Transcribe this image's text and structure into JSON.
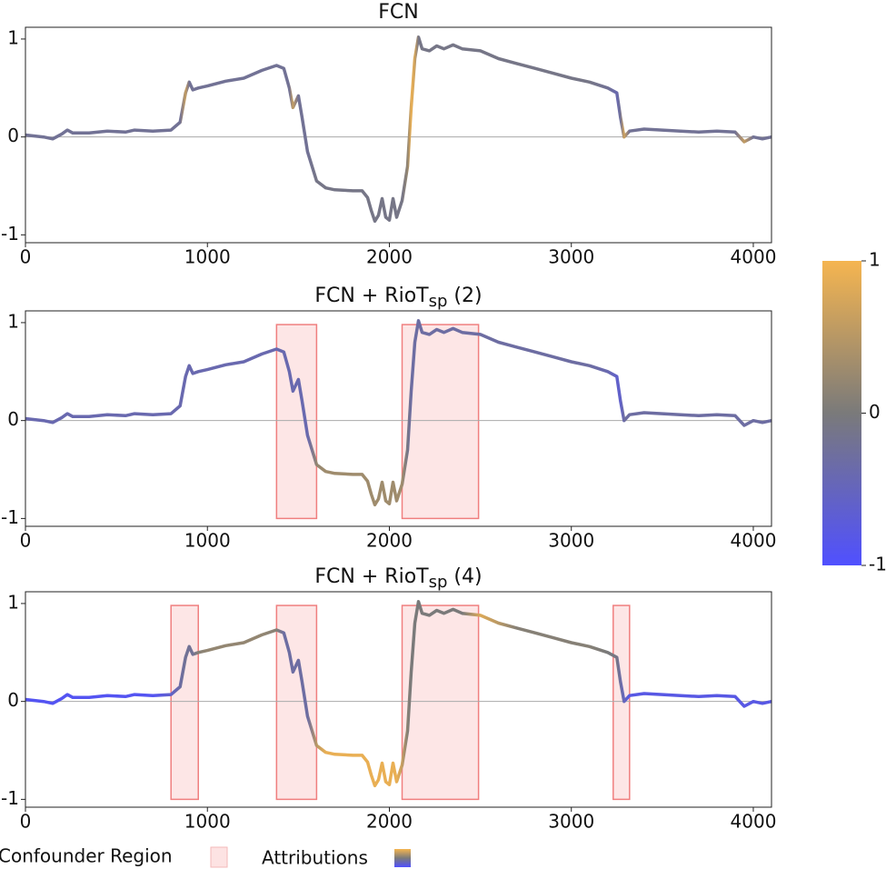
{
  "chart_data": [
    {
      "type": "line",
      "title": "FCN",
      "x": [
        0,
        100,
        150,
        200,
        230,
        260,
        350,
        450,
        550,
        600,
        700,
        800,
        850,
        880,
        900,
        920,
        950,
        1000,
        1100,
        1200,
        1300,
        1380,
        1420,
        1450,
        1470,
        1500,
        1520,
        1550,
        1600,
        1650,
        1700,
        1800,
        1850,
        1880,
        1900,
        1920,
        1940,
        1960,
        1980,
        2000,
        2020,
        2040,
        2070,
        2100,
        2120,
        2140,
        2160,
        2180,
        2220,
        2260,
        2300,
        2350,
        2400,
        2500,
        2600,
        2700,
        2800,
        2900,
        3000,
        3100,
        3200,
        3250,
        3270,
        3290,
        3320,
        3400,
        3500,
        3600,
        3700,
        3800,
        3900,
        3950,
        4000,
        4050,
        4100
      ],
      "values": [
        0.02,
        0.0,
        -0.02,
        0.03,
        0.07,
        0.04,
        0.04,
        0.06,
        0.05,
        0.07,
        0.06,
        0.07,
        0.15,
        0.45,
        0.56,
        0.48,
        0.5,
        0.52,
        0.57,
        0.6,
        0.68,
        0.73,
        0.7,
        0.5,
        0.3,
        0.42,
        0.2,
        -0.15,
        -0.45,
        -0.52,
        -0.54,
        -0.55,
        -0.55,
        -0.62,
        -0.75,
        -0.86,
        -0.8,
        -0.63,
        -0.82,
        -0.85,
        -0.63,
        -0.82,
        -0.65,
        -0.3,
        0.3,
        0.8,
        1.02,
        0.9,
        0.88,
        0.93,
        0.9,
        0.94,
        0.9,
        0.88,
        0.8,
        0.75,
        0.7,
        0.65,
        0.6,
        0.56,
        0.5,
        0.45,
        0.2,
        0.0,
        0.06,
        0.08,
        0.07,
        0.06,
        0.05,
        0.06,
        0.05,
        -0.05,
        0.0,
        -0.02,
        0.0
      ],
      "attributions": [
        -0.2,
        -0.2,
        -0.2,
        -0.2,
        -0.2,
        -0.2,
        -0.2,
        -0.2,
        -0.2,
        -0.2,
        -0.2,
        -0.2,
        -0.2,
        0.6,
        -0.2,
        -0.2,
        -0.2,
        -0.2,
        -0.2,
        -0.2,
        -0.2,
        -0.2,
        -0.2,
        -0.2,
        0.6,
        -0.2,
        -0.2,
        -0.2,
        -0.1,
        -0.1,
        -0.1,
        -0.1,
        -0.1,
        -0.1,
        -0.1,
        -0.1,
        -0.1,
        -0.1,
        -0.1,
        -0.1,
        -0.1,
        -0.1,
        -0.1,
        0.2,
        0.9,
        0.7,
        -0.1,
        -0.1,
        -0.1,
        -0.1,
        -0.1,
        -0.1,
        -0.1,
        -0.1,
        -0.1,
        -0.1,
        -0.1,
        -0.1,
        -0.1,
        -0.1,
        -0.2,
        -0.4,
        -0.2,
        0.7,
        -0.2,
        -0.2,
        -0.2,
        -0.2,
        -0.2,
        -0.2,
        -0.2,
        0.6,
        -0.2,
        -0.2,
        -0.2
      ],
      "xlim": [
        0,
        4100
      ],
      "xticks": [
        0,
        1000,
        2000,
        3000,
        4000
      ],
      "ylim": [
        -1.08,
        1.12
      ],
      "yticks": [
        -1,
        0,
        1
      ],
      "zero_line": true,
      "regions": []
    },
    {
      "type": "line",
      "title": "FCN + RioT",
      "title_sub": "sp",
      "title_tail": " (2)",
      "x": [
        0,
        100,
        150,
        200,
        230,
        260,
        350,
        450,
        550,
        600,
        700,
        800,
        850,
        880,
        900,
        920,
        950,
        1000,
        1100,
        1200,
        1300,
        1380,
        1420,
        1450,
        1470,
        1500,
        1520,
        1550,
        1600,
        1650,
        1700,
        1800,
        1850,
        1880,
        1900,
        1920,
        1940,
        1960,
        1980,
        2000,
        2020,
        2040,
        2070,
        2100,
        2120,
        2140,
        2160,
        2180,
        2220,
        2260,
        2300,
        2350,
        2400,
        2500,
        2600,
        2700,
        2800,
        2900,
        3000,
        3100,
        3200,
        3250,
        3270,
        3290,
        3320,
        3400,
        3500,
        3600,
        3700,
        3800,
        3900,
        3950,
        4000,
        4050,
        4100
      ],
      "values": [
        0.02,
        0.0,
        -0.02,
        0.03,
        0.07,
        0.04,
        0.04,
        0.06,
        0.05,
        0.07,
        0.06,
        0.07,
        0.15,
        0.45,
        0.56,
        0.48,
        0.5,
        0.52,
        0.57,
        0.6,
        0.68,
        0.73,
        0.7,
        0.5,
        0.3,
        0.42,
        0.2,
        -0.15,
        -0.45,
        -0.52,
        -0.54,
        -0.55,
        -0.55,
        -0.62,
        -0.75,
        -0.86,
        -0.8,
        -0.63,
        -0.82,
        -0.85,
        -0.63,
        -0.82,
        -0.65,
        -0.3,
        0.3,
        0.8,
        1.02,
        0.9,
        0.88,
        0.93,
        0.9,
        0.94,
        0.9,
        0.88,
        0.8,
        0.75,
        0.7,
        0.65,
        0.6,
        0.56,
        0.5,
        0.45,
        0.2,
        0.0,
        0.06,
        0.08,
        0.07,
        0.06,
        0.05,
        0.06,
        0.05,
        -0.05,
        0.0,
        -0.02,
        0.0
      ],
      "attributions": [
        -0.4,
        -0.4,
        -0.4,
        -0.4,
        -0.4,
        -0.4,
        -0.4,
        -0.4,
        -0.4,
        -0.4,
        -0.4,
        -0.4,
        -0.4,
        -0.4,
        -0.4,
        -0.4,
        -0.4,
        -0.4,
        -0.4,
        -0.4,
        -0.4,
        -0.4,
        -0.4,
        -0.4,
        -0.4,
        -0.4,
        -0.4,
        -0.4,
        0.2,
        0.3,
        0.3,
        0.3,
        0.3,
        0.3,
        0.3,
        0.3,
        0.3,
        0.3,
        0.3,
        0.3,
        0.3,
        0.3,
        0.3,
        -0.1,
        -0.3,
        -0.3,
        -0.3,
        -0.3,
        -0.3,
        -0.3,
        -0.3,
        -0.3,
        -0.3,
        -0.3,
        -0.3,
        -0.3,
        -0.3,
        -0.3,
        -0.3,
        -0.3,
        -0.4,
        -0.6,
        -0.6,
        -0.3,
        -0.3,
        -0.3,
        -0.3,
        -0.3,
        -0.3,
        -0.3,
        -0.3,
        -0.3,
        -0.3,
        -0.3,
        -0.3
      ],
      "xlim": [
        0,
        4100
      ],
      "xticks": [
        0,
        1000,
        2000,
        3000,
        4000
      ],
      "ylim": [
        -1.08,
        1.12
      ],
      "yticks": [
        -1,
        0,
        1
      ],
      "zero_line": true,
      "regions": [
        {
          "x": [
            1380,
            1600
          ],
          "y": [
            -1,
            0.98
          ]
        },
        {
          "x": [
            2070,
            2490
          ],
          "y": [
            -1,
            0.98
          ]
        }
      ]
    },
    {
      "type": "line",
      "title": "FCN + RioT",
      "title_sub": "sp",
      "title_tail": " (4)",
      "x": [
        0,
        100,
        150,
        200,
        230,
        260,
        350,
        450,
        550,
        600,
        700,
        800,
        850,
        880,
        900,
        920,
        950,
        1000,
        1100,
        1200,
        1300,
        1380,
        1420,
        1450,
        1470,
        1500,
        1520,
        1550,
        1600,
        1650,
        1700,
        1800,
        1850,
        1880,
        1900,
        1920,
        1940,
        1960,
        1980,
        2000,
        2020,
        2040,
        2070,
        2100,
        2120,
        2140,
        2160,
        2180,
        2220,
        2260,
        2300,
        2350,
        2400,
        2500,
        2600,
        2700,
        2800,
        2900,
        3000,
        3100,
        3200,
        3250,
        3270,
        3290,
        3320,
        3400,
        3500,
        3600,
        3700,
        3800,
        3900,
        3950,
        4000,
        4050,
        4100
      ],
      "values": [
        0.02,
        0.0,
        -0.02,
        0.03,
        0.07,
        0.04,
        0.04,
        0.06,
        0.05,
        0.07,
        0.06,
        0.07,
        0.15,
        0.45,
        0.56,
        0.48,
        0.5,
        0.52,
        0.57,
        0.6,
        0.68,
        0.73,
        0.7,
        0.5,
        0.3,
        0.42,
        0.2,
        -0.15,
        -0.45,
        -0.52,
        -0.54,
        -0.55,
        -0.55,
        -0.62,
        -0.75,
        -0.86,
        -0.8,
        -0.63,
        -0.82,
        -0.85,
        -0.63,
        -0.82,
        -0.65,
        -0.3,
        0.3,
        0.8,
        1.02,
        0.9,
        0.88,
        0.93,
        0.9,
        0.94,
        0.9,
        0.88,
        0.8,
        0.75,
        0.7,
        0.65,
        0.6,
        0.56,
        0.5,
        0.45,
        0.2,
        0.0,
        0.06,
        0.08,
        0.07,
        0.06,
        0.05,
        0.06,
        0.05,
        -0.05,
        0.0,
        -0.02,
        0.0
      ],
      "attributions": [
        -0.9,
        -0.9,
        -0.9,
        -0.9,
        -0.9,
        -0.9,
        -0.9,
        -0.9,
        -0.9,
        -0.9,
        -0.9,
        -0.6,
        -0.3,
        -0.2,
        -0.2,
        -0.2,
        0.1,
        0.2,
        0.2,
        0.2,
        0.2,
        0.1,
        -0.3,
        -0.3,
        -0.3,
        -0.3,
        -0.3,
        -0.3,
        0.5,
        0.9,
        0.9,
        0.9,
        0.9,
        0.9,
        0.9,
        0.9,
        0.9,
        0.9,
        0.9,
        0.9,
        0.9,
        0.9,
        0.6,
        0.1,
        0.0,
        0.0,
        0.0,
        0.0,
        0.0,
        0.0,
        0.0,
        0.0,
        0.0,
        0.8,
        0.5,
        0.1,
        0.1,
        0.1,
        0.1,
        0.1,
        0.0,
        -0.1,
        -0.3,
        -0.5,
        -0.8,
        -0.8,
        -0.8,
        -0.8,
        -0.8,
        -0.8,
        -0.8,
        -0.8,
        -0.8,
        -0.8,
        -0.8
      ],
      "xlim": [
        0,
        4100
      ],
      "xticks": [
        0,
        1000,
        2000,
        3000,
        4000
      ],
      "ylim": [
        -1.08,
        1.12
      ],
      "yticks": [
        -1,
        0,
        1
      ],
      "zero_line": true,
      "regions": [
        {
          "x": [
            800,
            950
          ],
          "y": [
            -1,
            0.98
          ]
        },
        {
          "x": [
            1380,
            1600
          ],
          "y": [
            -1,
            0.98
          ]
        },
        {
          "x": [
            2070,
            2490
          ],
          "y": [
            -1,
            0.98
          ]
        },
        {
          "x": [
            3230,
            3320
          ],
          "y": [
            -1,
            0.98
          ]
        }
      ]
    }
  ],
  "colorbar": {
    "range": [
      -1,
      1
    ],
    "ticks": [
      -1,
      0,
      1
    ],
    "colors": [
      "#5050ff",
      "#7a7a7a",
      "#f5b550"
    ]
  },
  "legend": [
    "Confounder Region",
    "Attributions"
  ]
}
